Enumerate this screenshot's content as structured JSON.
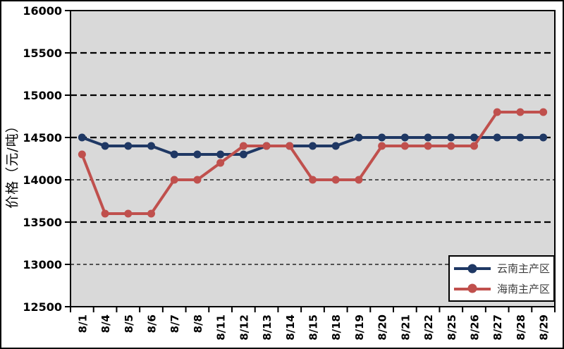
{
  "chart_data": {
    "type": "line",
    "ylabel": "价格（元/吨）",
    "categories": [
      "8/1",
      "8/4",
      "8/5",
      "8/6",
      "8/7",
      "8/8",
      "8/11",
      "8/12",
      "8/13",
      "8/14",
      "8/15",
      "8/18",
      "8/19",
      "8/20",
      "8/21",
      "8/22",
      "8/25",
      "8/26",
      "8/27",
      "8/28",
      "8/29"
    ],
    "series": [
      {
        "name": "云南主产区",
        "color": "#1F3864",
        "values": [
          14500,
          14400,
          14400,
          14400,
          14300,
          14300,
          14300,
          14300,
          14400,
          14400,
          14400,
          14400,
          14500,
          14500,
          14500,
          14500,
          14500,
          14500,
          14500,
          14500,
          14500
        ]
      },
      {
        "name": "海南主产区",
        "color": "#C0504D",
        "values": [
          14300,
          13600,
          13600,
          13600,
          14000,
          14000,
          14200,
          14400,
          14400,
          14400,
          14000,
          14000,
          14000,
          14400,
          14400,
          14400,
          14400,
          14400,
          14800,
          14800,
          14800
        ]
      }
    ],
    "ylim": [
      12500,
      16000
    ],
    "yticks": [
      12500,
      13000,
      13500,
      14000,
      14500,
      15000,
      15500,
      16000
    ],
    "grid": "dashed-horizontal",
    "legend_position": "inside-bottom-right",
    "plot_bg": "#D9D9D9",
    "axis_color": "#000000"
  }
}
